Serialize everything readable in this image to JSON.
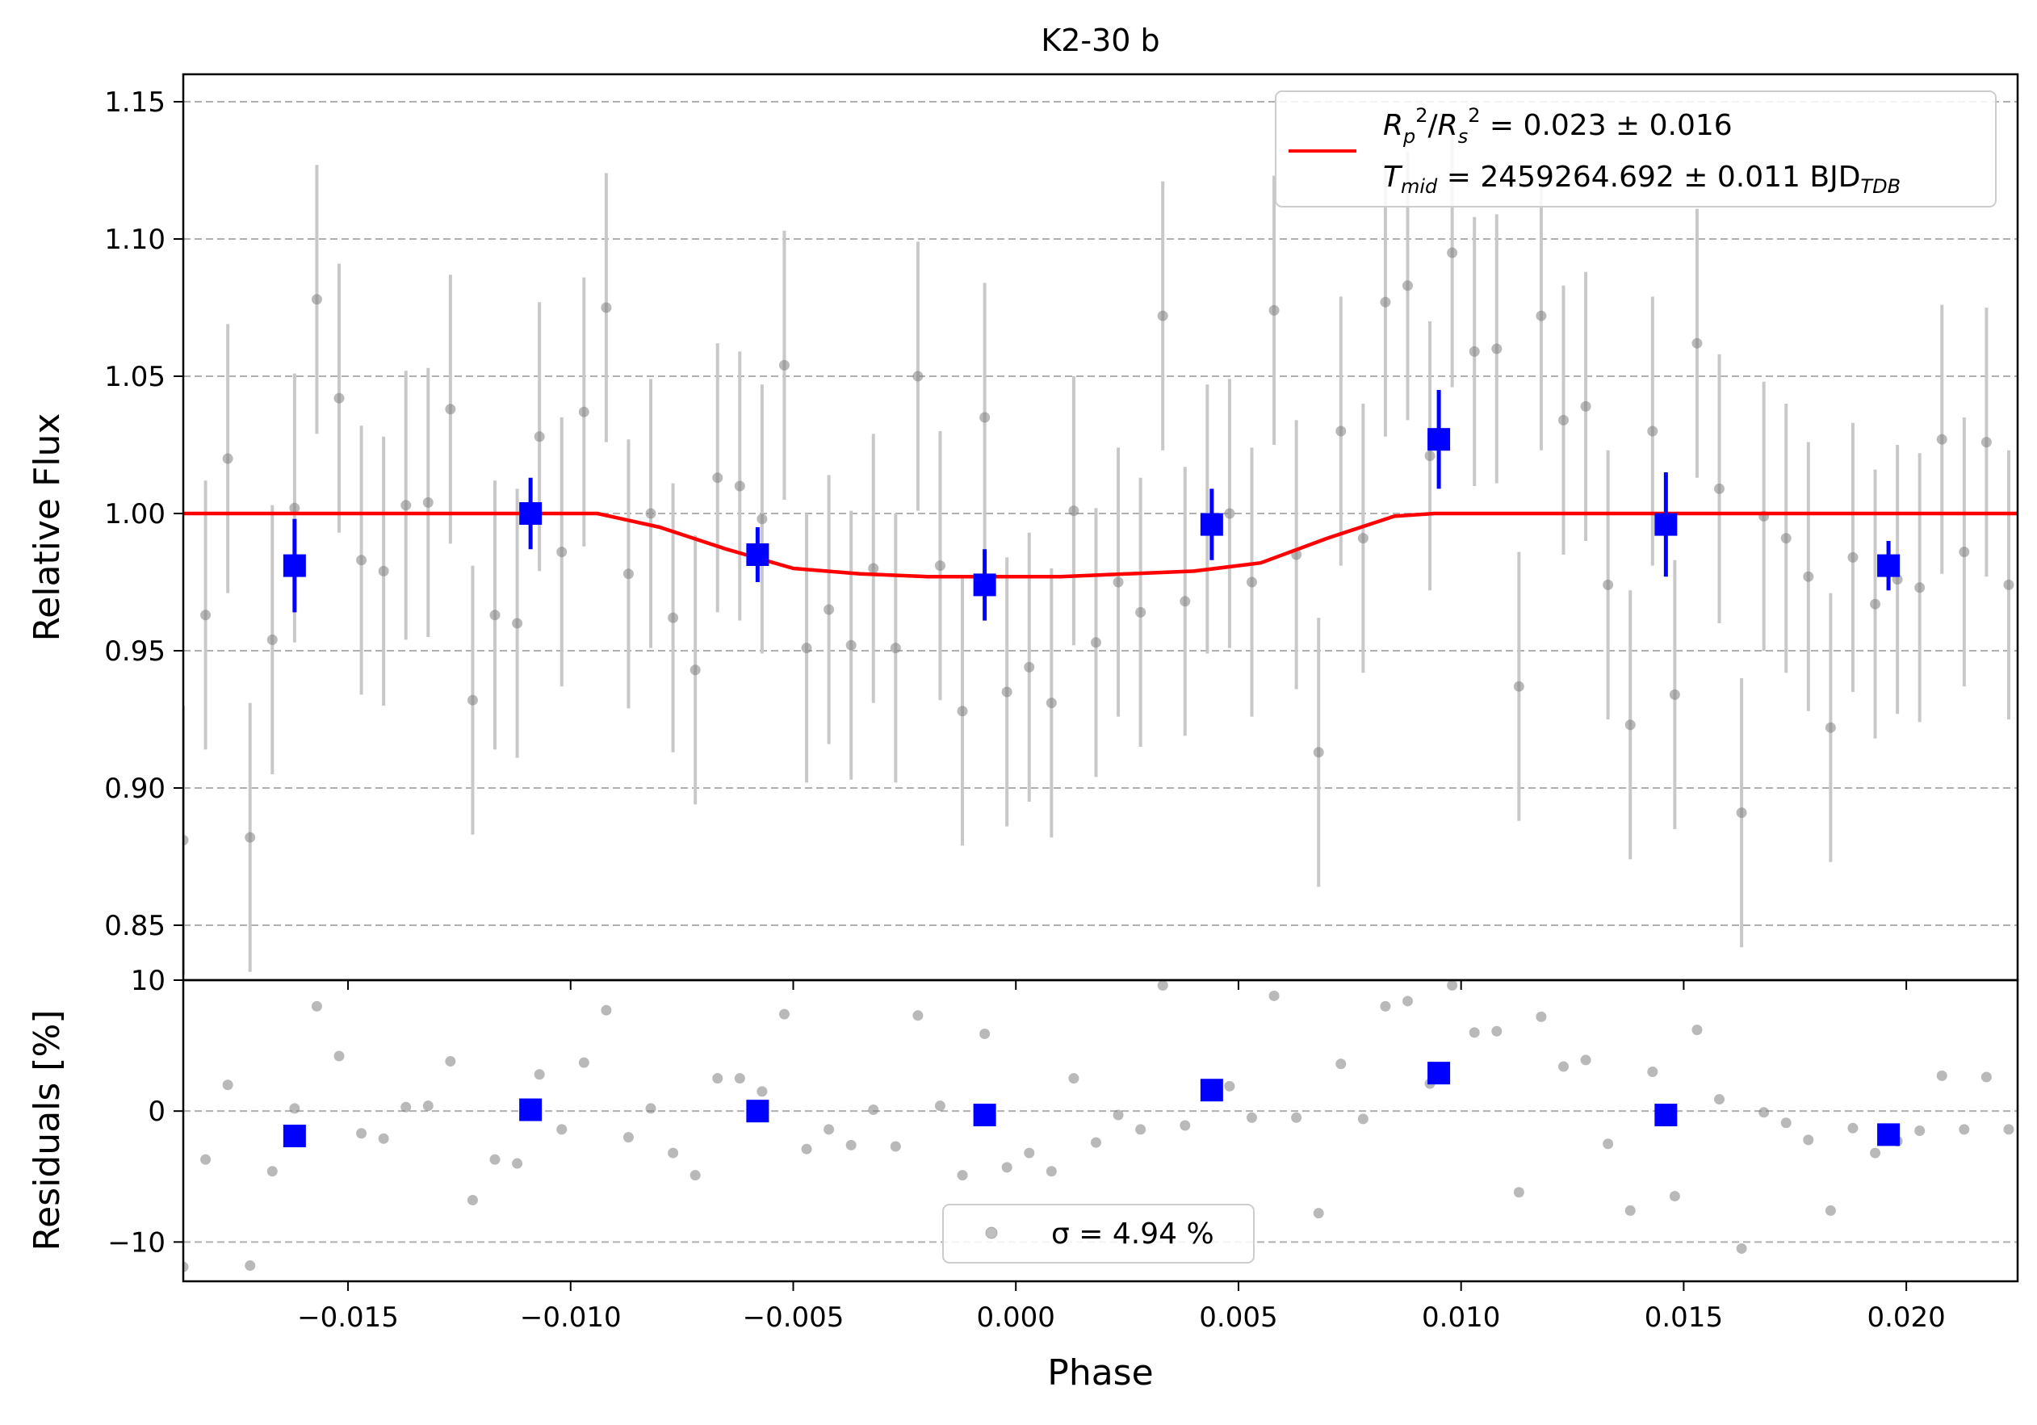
{
  "chart_data": [
    {
      "type": "scatter",
      "title": "K2-30 b",
      "xlabel": "",
      "ylabel": "Relative Flux",
      "xlim": [
        -0.0187,
        0.0225
      ],
      "ylim": [
        0.83,
        1.16
      ],
      "grid": "horizontal dashed",
      "legend": "top-right",
      "x_ticks": [
        -0.015,
        -0.01,
        -0.005,
        0.0,
        0.005,
        0.01,
        0.015,
        0.02
      ],
      "y_ticks": [
        0.85,
        0.9,
        0.95,
        1.0,
        1.05,
        1.1,
        1.15
      ],
      "y_tick_labels": [
        "0.85",
        "0.90",
        "0.95",
        "1.00",
        "1.05",
        "1.10",
        "1.15"
      ],
      "legend_entries": [
        {
          "color": "#ff0000",
          "line1": "R²p/R²s = 0.023 ± 0.016",
          "line2": "Tmid = 2459264.692 ± 0.011 BJD TDB"
        }
      ],
      "series": [
        {
          "style": "raw",
          "color": "#808080",
          "error": 0.049,
          "x": [
            -0.0187,
            -0.0182,
            -0.0177,
            -0.0172,
            -0.0167,
            -0.0162,
            -0.0157,
            -0.0152,
            -0.0147,
            -0.0142,
            -0.0137,
            -0.0132,
            -0.0127,
            -0.0122,
            -0.0117,
            -0.0112,
            -0.0107,
            -0.0102,
            -0.0097,
            -0.0092,
            -0.0087,
            -0.0082,
            -0.0077,
            -0.0072,
            -0.0067,
            -0.0062,
            -0.0057,
            -0.0052,
            -0.0047,
            -0.0042,
            -0.0037,
            -0.0032,
            -0.0027,
            -0.0022,
            -0.0017,
            -0.0012,
            -0.0007,
            -0.0002,
            0.0003,
            0.0008,
            0.0013,
            0.0018,
            0.0023,
            0.0028,
            0.0033,
            0.0038,
            0.0043,
            0.0048,
            0.0053,
            0.0058,
            0.0063,
            0.0068,
            0.0073,
            0.0078,
            0.0083,
            0.0088,
            0.0093,
            0.0098,
            0.0103,
            0.0108,
            0.0113,
            0.0118,
            0.0123,
            0.0128,
            0.0133,
            0.0138,
            0.0143,
            0.0148,
            0.0153,
            0.0158,
            0.0163,
            0.0168,
            0.0173,
            0.0178,
            0.0183,
            0.0188,
            0.0193,
            0.0198,
            0.0203,
            0.0208,
            0.0213,
            0.0218,
            0.0223
          ],
          "y": [
            0.881,
            0.963,
            1.02,
            0.882,
            0.954,
            1.002,
            1.078,
            1.042,
            0.983,
            0.979,
            1.003,
            1.004,
            1.038,
            0.932,
            0.963,
            0.96,
            1.028,
            0.986,
            1.037,
            1.075,
            0.978,
            1.0,
            0.962,
            0.943,
            1.013,
            1.01,
            0.998,
            1.054,
            0.951,
            0.965,
            0.952,
            0.98,
            0.951,
            1.05,
            0.981,
            0.928,
            1.035,
            0.935,
            0.944,
            0.931,
            1.001,
            0.953,
            0.975,
            0.964,
            1.072,
            0.968,
            0.998,
            1.0,
            0.975,
            1.074,
            0.985,
            0.913,
            1.03,
            0.991,
            1.077,
            1.083,
            1.021,
            1.095,
            1.059,
            1.06,
            0.937,
            1.072,
            1.034,
            1.039,
            0.974,
            0.923,
            1.03,
            0.934,
            1.062,
            1.009,
            0.891,
            0.999,
            0.991,
            0.977,
            0.922,
            0.984,
            0.967,
            0.976,
            0.973,
            1.027,
            0.986,
            1.026,
            0.974
          ]
        },
        {
          "style": "binned",
          "color": "#0000ff",
          "x": [
            -0.0162,
            -0.0109,
            -0.0058,
            -0.0007,
            0.0044,
            0.0095,
            0.0146,
            0.0196
          ],
          "y": [
            0.981,
            1.0,
            0.985,
            0.974,
            0.996,
            1.027,
            0.996,
            0.981
          ],
          "error": [
            0.017,
            0.013,
            0.01,
            0.013,
            0.013,
            0.018,
            0.019,
            0.009
          ]
        },
        {
          "style": "model",
          "color": "#ff0000",
          "x": [
            -0.0187,
            -0.0094,
            -0.008,
            -0.0065,
            -0.005,
            -0.0035,
            -0.002,
            -0.0005,
            0.001,
            0.0025,
            0.004,
            0.0055,
            0.007,
            0.0085,
            0.0094,
            0.0225
          ],
          "y": [
            1.0,
            1.0,
            0.995,
            0.987,
            0.98,
            0.978,
            0.977,
            0.977,
            0.977,
            0.978,
            0.979,
            0.982,
            0.991,
            0.999,
            1.0,
            1.0
          ]
        }
      ]
    },
    {
      "type": "scatter",
      "title": "",
      "xlabel": "Phase",
      "ylabel": "Residuals [%]",
      "xlim": [
        -0.0187,
        0.0225
      ],
      "ylim": [
        -13,
        10
      ],
      "grid": "horizontal dashed",
      "legend": "bottom-center",
      "x_ticks": [
        -0.015,
        -0.01,
        -0.005,
        0.0,
        0.005,
        0.01,
        0.015,
        0.02
      ],
      "x_tick_labels": [
        "−0.015",
        "−0.010",
        "−0.005",
        "0.000",
        "0.005",
        "0.010",
        "0.015",
        "0.020"
      ],
      "y_ticks": [
        -10,
        0,
        10
      ],
      "y_tick_labels": [
        "−10",
        "0",
        "10"
      ],
      "legend_entries": [
        {
          "color": "#808080",
          "label": "σ = 4.94 %"
        }
      ],
      "series": [
        {
          "style": "raw",
          "color": "#808080",
          "x": [
            -0.0187,
            -0.0182,
            -0.0177,
            -0.0172,
            -0.0167,
            -0.0162,
            -0.0157,
            -0.0152,
            -0.0147,
            -0.0142,
            -0.0137,
            -0.0132,
            -0.0127,
            -0.0122,
            -0.0117,
            -0.0112,
            -0.0107,
            -0.0102,
            -0.0097,
            -0.0092,
            -0.0087,
            -0.0082,
            -0.0077,
            -0.0072,
            -0.0067,
            -0.0062,
            -0.0057,
            -0.0052,
            -0.0047,
            -0.0042,
            -0.0037,
            -0.0032,
            -0.0027,
            -0.0022,
            -0.0017,
            -0.0012,
            -0.0007,
            -0.0002,
            0.0003,
            0.0008,
            0.0013,
            0.0018,
            0.0023,
            0.0028,
            0.0033,
            0.0038,
            0.0043,
            0.0048,
            0.0053,
            0.0058,
            0.0063,
            0.0068,
            0.0073,
            0.0078,
            0.0083,
            0.0088,
            0.0093,
            0.0098,
            0.0103,
            0.0108,
            0.0113,
            0.0118,
            0.0123,
            0.0128,
            0.0133,
            0.0138,
            0.0143,
            0.0148,
            0.0153,
            0.0158,
            0.0163,
            0.0168,
            0.0173,
            0.0178,
            0.0183,
            0.0188,
            0.0193,
            0.0198,
            0.0203,
            0.0208,
            0.0213,
            0.0218,
            0.0223
          ],
          "y": [
            -11.9,
            -3.7,
            2.0,
            -11.8,
            -4.6,
            0.2,
            8.0,
            4.2,
            -1.7,
            -2.1,
            0.3,
            0.4,
            3.8,
            -6.8,
            -3.7,
            -4.0,
            2.8,
            -1.4,
            3.7,
            7.7,
            -2.0,
            0.2,
            -3.2,
            -4.9,
            2.5,
            2.5,
            1.5,
            7.4,
            -2.9,
            -1.4,
            -2.6,
            0.1,
            -2.7,
            7.3,
            0.4,
            -4.9,
            5.9,
            -4.3,
            -3.2,
            -4.6,
            2.5,
            -2.4,
            -0.3,
            -1.4,
            9.6,
            -1.1,
            1.6,
            1.9,
            -0.5,
            8.8,
            -0.5,
            -7.8,
            3.6,
            -0.6,
            8.0,
            8.4,
            2.1,
            9.6,
            6.0,
            6.1,
            -6.2,
            7.2,
            3.4,
            3.9,
            -2.5,
            -7.6,
            3.0,
            -6.5,
            6.2,
            0.9,
            -10.5,
            -0.1,
            -0.9,
            -2.2,
            -7.6,
            -1.3,
            -3.2,
            -2.3,
            -1.5,
            2.7,
            -1.4,
            2.6,
            -1.4
          ]
        },
        {
          "style": "binned",
          "color": "#0000ff",
          "x": [
            -0.0162,
            -0.0109,
            -0.0058,
            -0.0007,
            0.0044,
            0.0095,
            0.0146,
            0.0196
          ],
          "y": [
            -1.9,
            0.1,
            0.0,
            -0.3,
            1.6,
            2.9,
            -0.3,
            -1.8
          ]
        }
      ]
    }
  ]
}
